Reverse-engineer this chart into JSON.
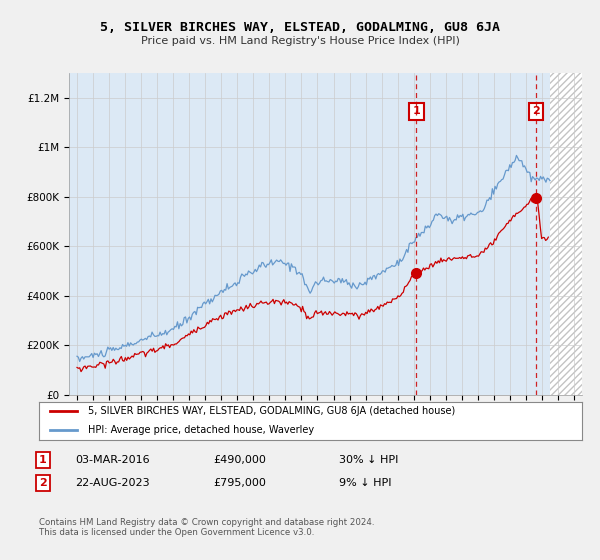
{
  "title": "5, SILVER BIRCHES WAY, ELSTEAD, GODALMING, GU8 6JA",
  "subtitle": "Price paid vs. HM Land Registry's House Price Index (HPI)",
  "legend_label_red": "5, SILVER BIRCHES WAY, ELSTEAD, GODALMING, GU8 6JA (detached house)",
  "legend_label_blue": "HPI: Average price, detached house, Waverley",
  "annotation1_date": "03-MAR-2016",
  "annotation1_price": "£490,000",
  "annotation1_hpi": "30% ↓ HPI",
  "annotation2_date": "22-AUG-2023",
  "annotation2_price": "£795,000",
  "annotation2_hpi": "9% ↓ HPI",
  "copyright": "Contains HM Land Registry data © Crown copyright and database right 2024.\nThis data is licensed under the Open Government Licence v3.0.",
  "ylim": [
    0,
    1300000
  ],
  "yticks": [
    0,
    200000,
    400000,
    600000,
    800000,
    1000000,
    1200000
  ],
  "ytick_labels": [
    "£0",
    "£200K",
    "£400K",
    "£600K",
    "£800K",
    "£1M",
    "£1.2M"
  ],
  "xmin": 1994.5,
  "xmax": 2026.5,
  "vline1_x": 2016.17,
  "vline2_x": 2023.64,
  "marker1_x": 2016.17,
  "marker1_y": 490000,
  "marker2_x": 2023.64,
  "marker2_y": 795000,
  "red_color": "#cc0000",
  "blue_color": "#6699cc",
  "vline_color": "#cc0000",
  "background_color": "#f0f0f0",
  "plot_bg_color": "#dce9f5",
  "hatch_start": 2024.5
}
